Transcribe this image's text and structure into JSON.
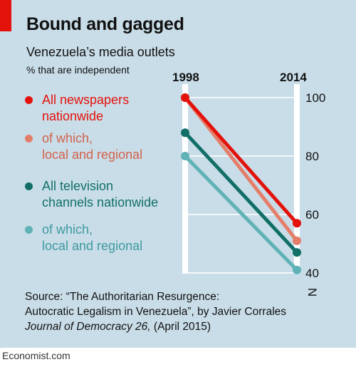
{
  "header": {
    "title": "Bound and gagged",
    "subtitle": "Venezuela’s media outlets",
    "unit": "% that are independent"
  },
  "chart_data": {
    "type": "line",
    "x": [
      "1998",
      "2014"
    ],
    "series": [
      {
        "name": "All newspapers nationwide",
        "values": [
          100,
          57
        ],
        "color": "#e3120b"
      },
      {
        "name": "of which, local and regional",
        "values": [
          100,
          51
        ],
        "color": "#e57e69"
      },
      {
        "name": "All television channels nationwide",
        "values": [
          88,
          47
        ],
        "color": "#116f68"
      },
      {
        "name": "of which, local and regional",
        "values": [
          80,
          41
        ],
        "color": "#5fb2b5"
      }
    ],
    "yticks": [
      "100",
      "80",
      "60",
      "40"
    ],
    "ylim": [
      40,
      100
    ],
    "axis_break": "N",
    "legend": [
      {
        "line1": "All newspapers",
        "line2": "nationwide",
        "color": "#e3120b"
      },
      {
        "line1": "of which,",
        "line2": "local and regional",
        "color": "#e57e69"
      },
      {
        "line1": "All television",
        "line2": "channels nationwide",
        "color": "#116f68"
      },
      {
        "line1": "of which,",
        "line2": "local and regional",
        "color": "#5fb2b5"
      }
    ]
  },
  "source": {
    "line1": "Source: “The Authoritarian Resurgence:",
    "line2": "Autocratic Legalism in Venezuela”, by Javier Corrales",
    "journal": "Journal of Democracy 26,",
    "date": " (April 2015)"
  },
  "footer": {
    "brand": "Economist.com"
  }
}
